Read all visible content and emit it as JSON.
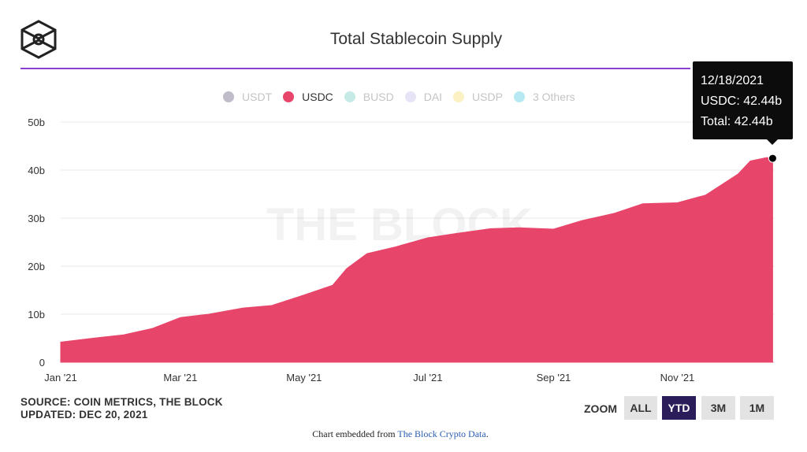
{
  "header": {
    "title": "Total Stablecoin Supply"
  },
  "legend": [
    {
      "label": "USDT",
      "color": "#c0bcc9",
      "active": false
    },
    {
      "label": "USDC",
      "color": "#e8456a",
      "active": true
    },
    {
      "label": "BUSD",
      "color": "#c6ebe6",
      "active": false
    },
    {
      "label": "DAI",
      "color": "#e6e4f6",
      "active": false
    },
    {
      "label": "USDP",
      "color": "#fbf1c4",
      "active": false
    },
    {
      "label": "3 Others",
      "color": "#b7e9f3",
      "active": false
    }
  ],
  "watermark": "THE BLOCK",
  "tooltip": {
    "date": "12/18/2021",
    "series_line": "USDC: 42.44b",
    "total_line": "Total: 42.44b"
  },
  "footer": {
    "source": "SOURCE: COIN METRICS, THE BLOCK",
    "updated": "UPDATED: DEC 20, 2021",
    "zoom_label": "ZOOM",
    "zoom_buttons": [
      {
        "label": "ALL",
        "active": false
      },
      {
        "label": "YTD",
        "active": true
      },
      {
        "label": "3M",
        "active": false
      },
      {
        "label": "1M",
        "active": false
      }
    ],
    "embed_prefix": "Chart embedded from ",
    "embed_link": "The Block Crypto Data",
    "embed_suffix": "."
  },
  "chart_data": {
    "type": "area",
    "title": "Total Stablecoin Supply",
    "xlabel": "",
    "ylabel": "",
    "ylim": [
      0,
      50
    ],
    "yticks": [
      0,
      10,
      20,
      30,
      40,
      50
    ],
    "ytick_labels": [
      "0",
      "10b",
      "20b",
      "30b",
      "40b",
      "50b"
    ],
    "xlim": [
      "2021-01-01",
      "2021-12-19"
    ],
    "xticks": [
      "2021-01-01",
      "2021-03-01",
      "2021-05-01",
      "2021-07-01",
      "2021-09-01",
      "2021-11-01"
    ],
    "xtick_labels": [
      "Jan '21",
      "Mar '21",
      "May '21",
      "Jul '21",
      "Sep '21",
      "Nov '21"
    ],
    "grid": true,
    "legend_position": "top",
    "series": [
      {
        "name": "USDC",
        "color": "#e8456a",
        "points": [
          [
            "2021-01-01",
            4.2
          ],
          [
            "2021-01-15",
            4.9
          ],
          [
            "2021-02-01",
            5.7
          ],
          [
            "2021-02-15",
            7.0
          ],
          [
            "2021-03-01",
            9.3
          ],
          [
            "2021-03-15",
            10.0
          ],
          [
            "2021-04-01",
            11.3
          ],
          [
            "2021-04-15",
            11.8
          ],
          [
            "2021-05-01",
            14.0
          ],
          [
            "2021-05-15",
            16.0
          ],
          [
            "2021-05-22",
            19.5
          ],
          [
            "2021-06-01",
            22.6
          ],
          [
            "2021-06-15",
            24.0
          ],
          [
            "2021-07-01",
            25.9
          ],
          [
            "2021-07-15",
            26.8
          ],
          [
            "2021-08-01",
            27.8
          ],
          [
            "2021-08-15",
            28.0
          ],
          [
            "2021-09-01",
            27.7
          ],
          [
            "2021-09-15",
            29.5
          ],
          [
            "2021-10-01",
            31.0
          ],
          [
            "2021-10-15",
            33.0
          ],
          [
            "2021-11-01",
            33.2
          ],
          [
            "2021-11-15",
            34.8
          ],
          [
            "2021-12-01",
            39.2
          ],
          [
            "2021-12-07",
            41.9
          ],
          [
            "2021-12-15",
            42.6
          ],
          [
            "2021-12-18",
            42.44
          ]
        ]
      }
    ],
    "highlight_point": [
      "2021-12-18",
      42.44
    ]
  }
}
